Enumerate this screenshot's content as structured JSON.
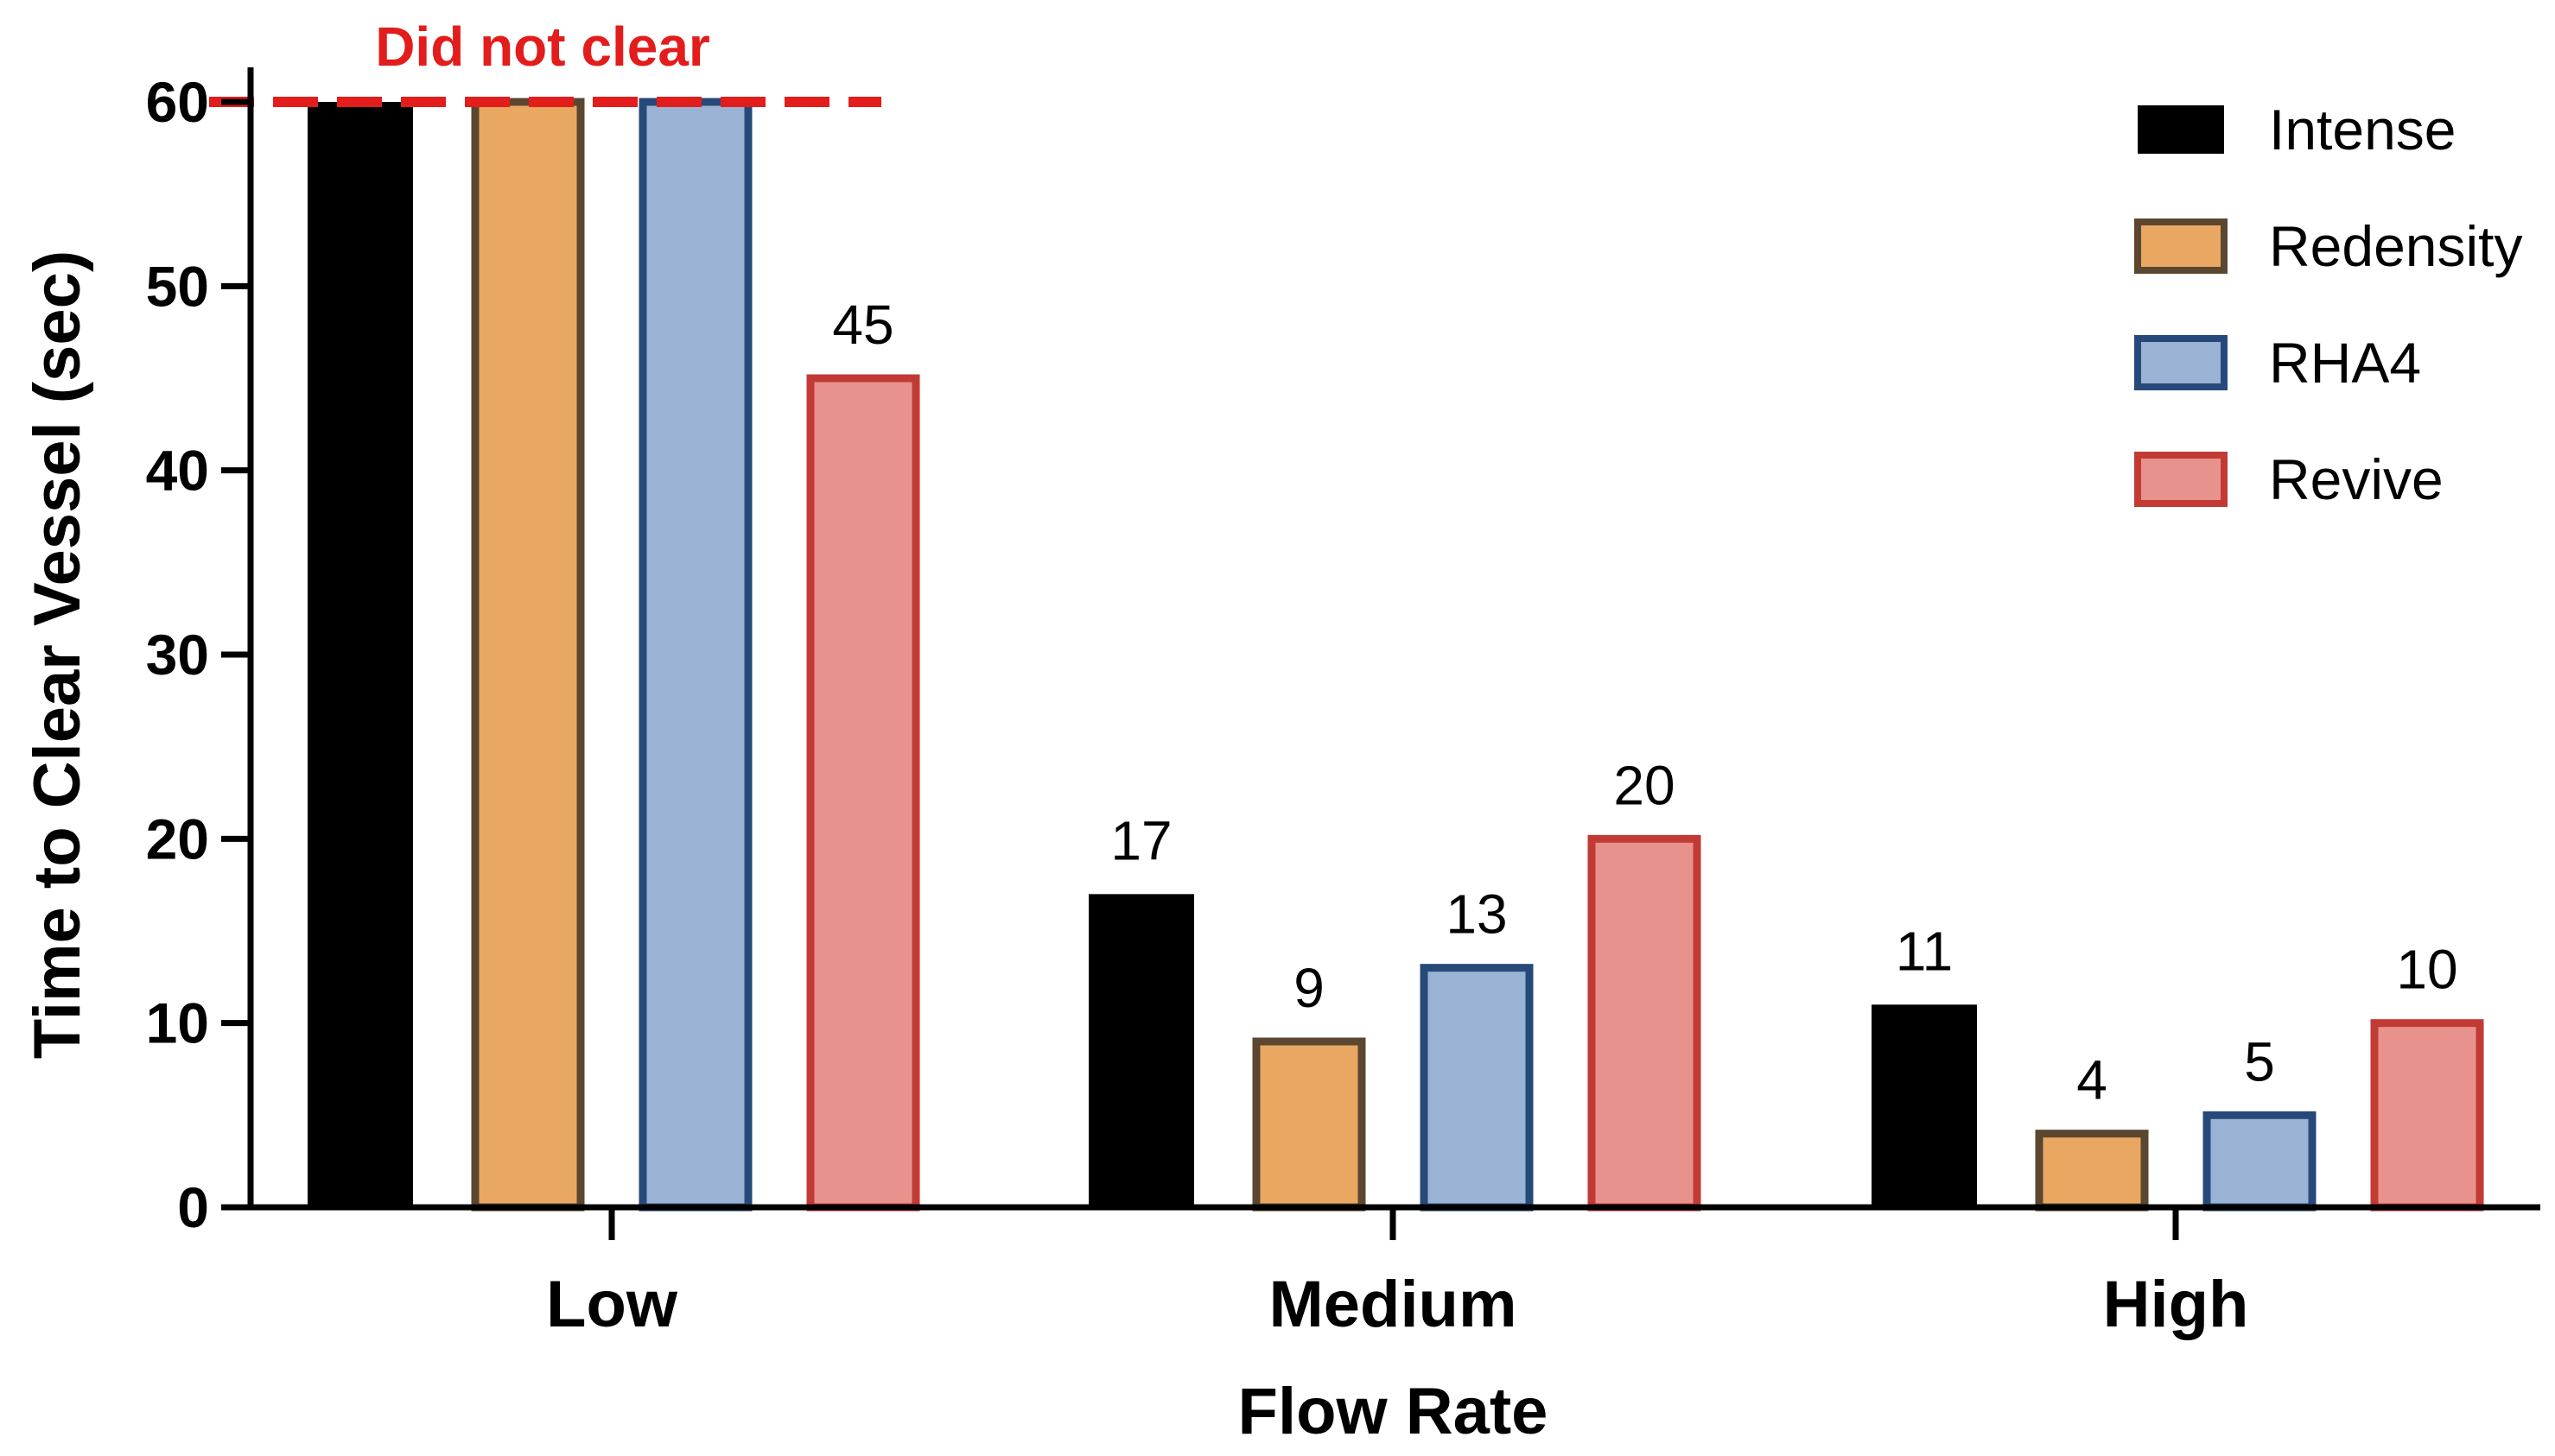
{
  "chart_data": {
    "type": "bar",
    "categories": [
      "Low",
      "Medium",
      "High"
    ],
    "series": [
      {
        "name": "Intense",
        "values": [
          60,
          17,
          11
        ],
        "fill": "#000000",
        "stroke": "#000000"
      },
      {
        "name": "Redensity",
        "values": [
          60,
          9,
          4
        ],
        "fill": "#e8a862",
        "stroke": "#5b4630"
      },
      {
        "name": "RHA4",
        "values": [
          60,
          13,
          5
        ],
        "fill": "#9ab3d5",
        "stroke": "#27497a"
      },
      {
        "name": "Revive",
        "values": [
          45,
          20,
          10
        ],
        "fill": "#e8928e",
        "stroke": "#c23a34"
      }
    ],
    "data_labels": {
      "Low": [
        "",
        "",
        "",
        "45"
      ],
      "Medium": [
        "17",
        "9",
        "13",
        "20"
      ],
      "High": [
        "11",
        "4",
        "5",
        "10"
      ]
    },
    "xlabel": "Flow Rate",
    "ylabel": "Time to Clear Vessel (sec)",
    "ylim": [
      0,
      60
    ],
    "yticks": [
      "0",
      "10",
      "20",
      "30",
      "40",
      "50",
      "60"
    ],
    "grid": false,
    "legend_position": "top-right",
    "annotation": {
      "text": "Did not clear",
      "y": 60,
      "color": "#e31c1c"
    }
  }
}
